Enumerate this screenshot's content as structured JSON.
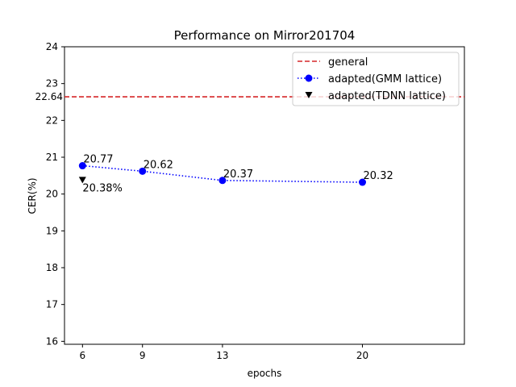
{
  "chart_data": {
    "type": "line",
    "title": "Performance on Mirror201704",
    "xlabel": "epochs",
    "ylabel": "CER(%)",
    "x_ticks": [
      6,
      9,
      13,
      20
    ],
    "xlim": [
      5.1,
      25.1
    ],
    "y_ticks": [
      16,
      17,
      18,
      19,
      20,
      21,
      22,
      23,
      24
    ],
    "ylim": [
      15.92,
      24
    ],
    "grid": false,
    "legend_position": "top-right",
    "series": [
      {
        "name": "general",
        "kind": "hline",
        "y": 22.64,
        "label": "22.64",
        "color": "#d62728",
        "style": "dashed"
      },
      {
        "name": "adapted(GMM lattice)",
        "kind": "line-markers",
        "x": [
          6,
          9,
          13,
          20
        ],
        "y": [
          20.77,
          20.62,
          20.37,
          20.32
        ],
        "labels": [
          "20.77",
          "20.62",
          "20.37",
          "20.32"
        ],
        "color": "#0000ff",
        "style": "dotted",
        "marker": "circle"
      },
      {
        "name": "adapted(TDNN lattice)",
        "kind": "markers",
        "x": [
          6
        ],
        "y": [
          20.38
        ],
        "labels": [
          "20.38%"
        ],
        "color": "#000000",
        "marker": "triangle-down"
      }
    ]
  }
}
